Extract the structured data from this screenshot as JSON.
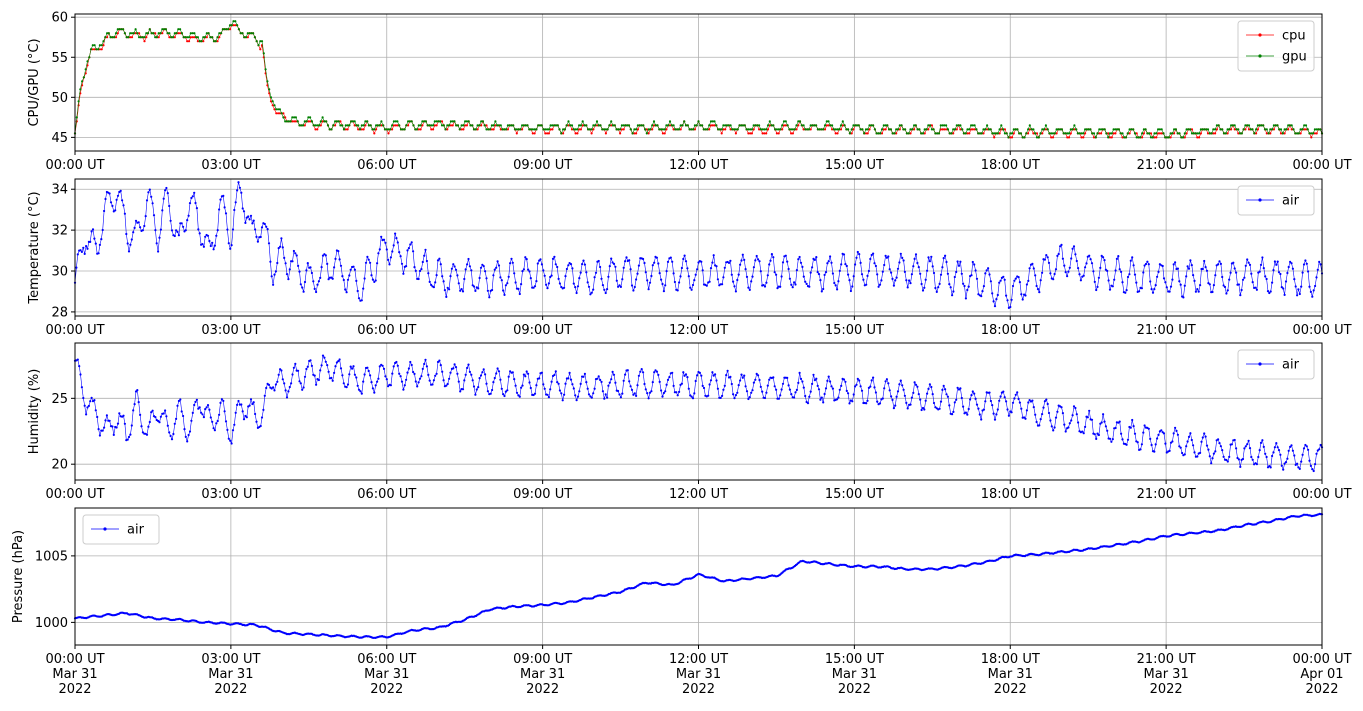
{
  "x_ticks": [
    "00:00 UT",
    "03:00 UT",
    "06:00 UT",
    "09:00 UT",
    "12:00 UT",
    "15:00 UT",
    "18:00 UT",
    "21:00 UT",
    "00:00 UT"
  ],
  "x_dates": [
    [
      "Mar 31",
      "2022"
    ],
    [
      "Mar 31",
      "2022"
    ],
    [
      "Mar 31",
      "2022"
    ],
    [
      "Mar 31",
      "2022"
    ],
    [
      "Mar 31",
      "2022"
    ],
    [
      "Mar 31",
      "2022"
    ],
    [
      "Mar 31",
      "2022"
    ],
    [
      "Mar 31",
      "2022"
    ],
    [
      "Apr 01",
      "2022"
    ]
  ],
  "chart_data": [
    {
      "type": "line",
      "ylabel": "CPU/GPU (°C)",
      "xlim": [
        0,
        24
      ],
      "ylim": [
        43.3,
        60.4
      ],
      "yticks": [
        45,
        50,
        55,
        60
      ],
      "grid": true,
      "legend": "top-right",
      "series": [
        {
          "name": "cpu",
          "color": "#ff0000",
          "x": [
            0,
            0.1,
            0.3,
            0.5,
            0.8,
            1.2,
            1.6,
            2.0,
            2.4,
            2.8,
            3.0,
            3.2,
            3.5,
            3.6,
            3.7,
            3.9,
            4.2,
            5,
            6,
            7,
            8,
            9,
            10,
            11,
            12,
            13,
            14,
            15,
            16,
            17,
            18,
            19,
            20,
            21,
            22,
            23,
            24
          ],
          "y": [
            45.3,
            50.5,
            55.5,
            56.5,
            58.2,
            57.5,
            58.0,
            57.8,
            57.2,
            57.5,
            59.2,
            58.0,
            57.2,
            56.5,
            51.0,
            48.0,
            46.8,
            46.5,
            46.2,
            46.5,
            46.2,
            46.0,
            46.2,
            46.0,
            46.3,
            46.0,
            46.2,
            46.0,
            45.8,
            45.9,
            45.5,
            45.6,
            45.5,
            45.2,
            45.8,
            46.0,
            45.5
          ]
        },
        {
          "name": "gpu",
          "color": "#008000",
          "x": [
            0,
            0.1,
            0.3,
            0.5,
            0.8,
            1.2,
            1.6,
            2.0,
            2.4,
            2.8,
            3.0,
            3.2,
            3.5,
            3.6,
            3.7,
            3.9,
            4.2,
            5,
            6,
            7,
            8,
            9,
            10,
            11,
            12,
            13,
            14,
            15,
            16,
            17,
            18,
            19,
            20,
            21,
            22,
            23,
            24
          ],
          "y": [
            45.5,
            51.0,
            55.8,
            56.8,
            58.4,
            57.7,
            58.2,
            58.0,
            57.4,
            57.7,
            59.4,
            58.2,
            57.4,
            56.8,
            51.5,
            48.2,
            47.0,
            46.7,
            46.4,
            46.7,
            46.4,
            46.2,
            46.4,
            46.2,
            46.5,
            46.2,
            46.4,
            46.2,
            46.0,
            46.1,
            45.7,
            45.8,
            45.7,
            45.4,
            46.0,
            46.2,
            45.7
          ]
        }
      ]
    },
    {
      "type": "line",
      "ylabel": "Temperature (°C)",
      "xlim": [
        0,
        24
      ],
      "ylim": [
        27.8,
        34.5
      ],
      "yticks": [
        28,
        30,
        32,
        34
      ],
      "grid": true,
      "legend": "top-right",
      "series": [
        {
          "name": "air",
          "color": "#0000ff",
          "x": [
            0,
            0.2,
            0.4,
            0.6,
            0.8,
            1.0,
            1.2,
            1.4,
            1.6,
            1.8,
            2.0,
            2.2,
            2.4,
            2.6,
            2.8,
            3.0,
            3.2,
            3.4,
            3.6,
            3.8,
            4.0,
            4.5,
            5.0,
            5.5,
            6.0,
            7,
            8,
            9,
            10,
            11,
            12,
            13,
            14,
            15,
            16,
            17,
            18,
            19,
            20,
            21,
            22,
            23,
            24
          ],
          "y": [
            29.3,
            31.8,
            30.9,
            33.2,
            33.9,
            32.0,
            31.5,
            33.6,
            31.8,
            33.7,
            31.2,
            33.5,
            32.3,
            30.8,
            33.2,
            31.9,
            34.1,
            31.7,
            32.5,
            30.2,
            30.8,
            29.6,
            30.3,
            29.2,
            31.3,
            29.7,
            29.6,
            29.9,
            29.7,
            30.0,
            29.8,
            30.0,
            29.9,
            30.0,
            30.1,
            29.7,
            29.0,
            30.5,
            29.8,
            29.6,
            29.7,
            29.8,
            29.5
          ]
        }
      ]
    },
    {
      "type": "line",
      "ylabel": "Humidity (%)",
      "xlim": [
        0,
        24
      ],
      "ylim": [
        18.8,
        29.2
      ],
      "yticks": [
        20,
        25
      ],
      "grid": true,
      "legend": "top-right",
      "series": [
        {
          "name": "air",
          "color": "#0000ff",
          "x": [
            0,
            0.2,
            0.4,
            0.6,
            0.8,
            1.0,
            1.2,
            1.4,
            1.6,
            1.8,
            2.0,
            2.2,
            2.4,
            2.6,
            2.8,
            3.0,
            3.2,
            3.4,
            3.6,
            3.8,
            4.0,
            4.5,
            5.0,
            5.5,
            6.0,
            7,
            8,
            9,
            10,
            11,
            12,
            13,
            14,
            15,
            16,
            17,
            17.5,
            18,
            18.5,
            19,
            20,
            21,
            22,
            23,
            24
          ],
          "y": [
            27.6,
            25.0,
            23.8,
            22.5,
            23.6,
            22.3,
            24.7,
            22.1,
            24.4,
            22.3,
            24.0,
            22.5,
            25.0,
            23.0,
            24.2,
            22.3,
            24.4,
            24.0,
            23.5,
            26.5,
            26.0,
            27.0,
            27.3,
            26.2,
            26.8,
            26.8,
            26.2,
            26.0,
            25.9,
            26.1,
            26.0,
            25.9,
            25.8,
            25.6,
            25.2,
            24.8,
            24.5,
            24.6,
            24.0,
            23.5,
            22.5,
            21.8,
            21.0,
            20.7,
            20.5
          ]
        }
      ]
    },
    {
      "type": "line",
      "ylabel": "Pressure (hPa)",
      "xlim": [
        0,
        24
      ],
      "ylim": [
        998.3,
        1008.6
      ],
      "yticks": [
        1000,
        1005
      ],
      "grid": true,
      "legend": "top-left",
      "series": [
        {
          "name": "air",
          "color": "#0000ff",
          "x": [
            0,
            0.5,
            1.0,
            1.5,
            2.0,
            2.5,
            3.0,
            3.5,
            4.0,
            4.5,
            5.0,
            5.5,
            6.0,
            6.5,
            7.0,
            7.5,
            8.0,
            8.5,
            9.0,
            9.5,
            10.0,
            10.5,
            11.0,
            11.5,
            12.0,
            12.5,
            13.0,
            13.5,
            14.0,
            14.5,
            15.0,
            15.5,
            16.0,
            16.5,
            17.0,
            17.5,
            18.0,
            18.5,
            19.0,
            19.5,
            20.0,
            20.5,
            21.0,
            21.5,
            22.0,
            22.5,
            23.0,
            23.5,
            24.0
          ],
          "y": [
            1000.3,
            1000.5,
            1000.7,
            1000.3,
            1000.2,
            1000.0,
            999.9,
            999.8,
            999.2,
            999.1,
            999.0,
            998.9,
            998.9,
            999.4,
            999.6,
            1000.2,
            1001.0,
            1001.2,
            1001.3,
            1001.5,
            1001.9,
            1002.3,
            1003.0,
            1002.8,
            1003.6,
            1003.1,
            1003.3,
            1003.5,
            1004.6,
            1004.4,
            1004.2,
            1004.2,
            1004.0,
            1004.0,
            1004.2,
            1004.5,
            1005.0,
            1005.1,
            1005.3,
            1005.5,
            1005.8,
            1006.1,
            1006.5,
            1006.7,
            1006.9,
            1007.3,
            1007.6,
            1008.0,
            1008.1
          ]
        }
      ]
    }
  ]
}
